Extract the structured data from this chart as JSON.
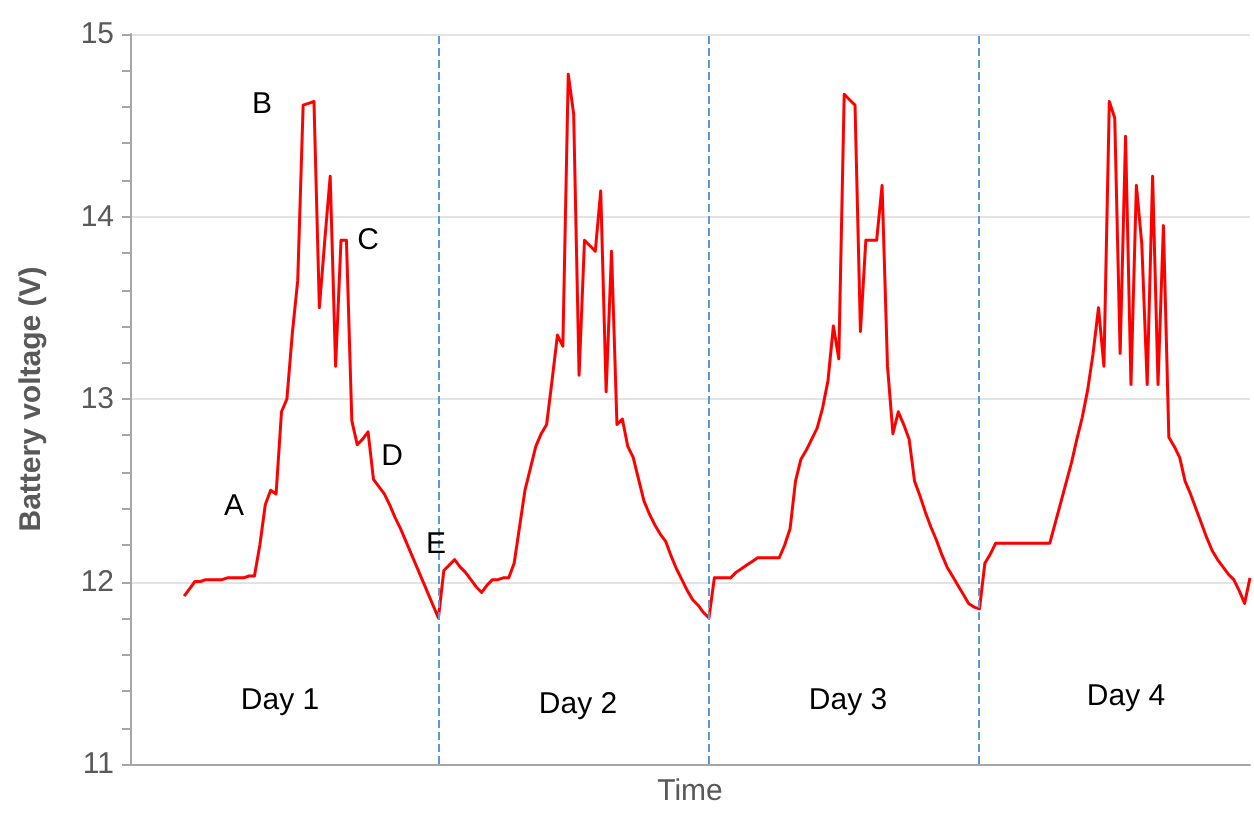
{
  "chart_data": {
    "type": "line",
    "xlabel": "Time",
    "ylabel": "Battery voltage (V)",
    "categories": [
      null,
      null,
      null,
      null,
      null,
      null,
      null,
      null,
      null,
      null,
      null,
      null,
      null,
      null,
      null,
      null,
      null,
      null,
      null,
      null,
      null,
      null,
      null,
      null,
      null,
      null,
      null,
      null,
      null,
      null,
      null,
      null,
      null,
      null,
      null,
      null,
      null,
      null,
      null,
      null,
      null,
      null,
      null,
      null,
      null,
      null,
      null,
      null,
      null,
      null,
      null,
      null,
      null,
      null,
      null,
      null,
      null,
      null,
      null,
      null,
      null,
      null,
      null,
      null,
      null,
      null,
      null,
      null,
      null,
      null,
      null,
      null,
      null,
      null,
      null,
      null,
      null,
      null,
      null,
      null,
      null,
      null,
      null,
      null,
      null,
      null,
      null,
      null,
      null,
      null,
      null,
      null,
      null,
      null,
      null,
      null,
      null,
      null,
      null,
      null,
      null,
      null,
      null,
      null,
      null,
      null,
      null,
      null,
      null,
      null,
      null,
      null,
      null,
      null,
      null,
      null,
      null,
      null,
      null,
      null,
      null,
      null,
      null,
      null,
      null,
      null,
      null,
      null,
      null,
      null,
      null,
      null,
      null,
      null,
      null,
      null,
      null,
      null,
      null,
      null,
      null,
      null,
      null,
      null,
      null,
      null,
      null,
      null,
      null,
      null,
      null,
      null,
      null,
      null,
      null,
      null,
      null,
      null,
      null,
      null,
      null,
      null,
      null,
      null,
      null,
      null,
      null,
      null,
      null,
      null,
      null,
      null,
      null,
      null,
      null,
      null,
      null,
      null,
      null,
      null,
      null,
      null,
      null,
      null,
      null,
      null,
      null,
      null,
      null,
      null,
      null,
      null,
      null,
      null,
      null,
      null,
      null,
      null,
      null,
      null,
      null,
      null,
      null,
      null,
      null,
      null,
      null,
      null
    ],
    "ylim": [
      11,
      15
    ],
    "yticks": [
      11,
      {
        "value": 11.2,
        "label": null
      },
      {
        "value": 11.4,
        "label": null
      },
      {
        "value": 11.6,
        "label": null
      },
      {
        "value": 11.8,
        "label": null
      },
      12,
      {
        "value": 12.2,
        "label": null
      },
      {
        "value": 12.4,
        "label": null
      },
      {
        "value": 12.6,
        "label": null
      },
      {
        "value": 12.8,
        "label": null
      },
      13,
      {
        "value": 13.2,
        "label": null
      },
      {
        "value": 13.4,
        "label": null
      },
      {
        "value": 13.6,
        "label": null
      },
      {
        "value": 13.8,
        "label": null
      },
      14,
      {
        "value": 14.2,
        "label": null
      },
      {
        "value": 14.4,
        "label": null
      },
      {
        "value": 14.6,
        "label": null
      },
      {
        "value": 14.8,
        "label": null
      },
      15
    ],
    "tick_labels": "y",
    "grid": "y",
    "line_style": "solid",
    "series": [
      {
        "color": "#ff0000",
        "values": [
          null,
          null,
          null,
          null,
          null,
          null,
          null,
          null,
          null,
          null,
          11.92,
          11.96,
          12.0,
          12.0,
          12.01,
          12.01,
          12.01,
          12.01,
          12.02,
          12.02,
          12.02,
          12.02,
          12.03,
          12.03,
          12.2,
          12.42,
          12.5,
          12.48,
          12.93,
          13.0,
          13.36,
          13.65,
          14.61,
          14.62,
          14.63,
          13.5,
          13.87,
          14.22,
          13.18,
          13.87,
          13.87,
          12.88,
          12.75,
          12.78,
          12.82,
          12.56,
          12.52,
          12.48,
          12.42,
          12.35,
          12.29,
          12.22,
          12.15,
          12.08,
          12.01,
          11.94,
          11.87,
          11.8,
          12.06,
          12.09,
          12.12,
          12.08,
          12.05,
          12.01,
          11.97,
          11.94,
          11.98,
          12.01,
          12.01,
          12.02,
          12.02,
          12.1,
          12.3,
          12.5,
          12.62,
          12.74,
          12.81,
          12.86,
          13.1,
          13.35,
          13.29,
          14.78,
          14.56,
          13.13,
          13.87,
          13.84,
          13.81,
          14.14,
          13.04,
          13.81,
          12.86,
          12.89,
          12.74,
          12.68,
          12.56,
          12.44,
          12.37,
          12.31,
          12.26,
          12.22,
          12.14,
          12.07,
          12.01,
          11.95,
          11.9,
          11.87,
          11.83,
          11.8,
          12.02,
          12.02,
          12.02,
          12.02,
          12.05,
          12.07,
          12.09,
          12.11,
          12.13,
          12.13,
          12.13,
          12.13,
          12.13,
          12.2,
          12.29,
          12.55,
          12.67,
          12.72,
          12.78,
          12.84,
          12.95,
          13.1,
          13.4,
          13.22,
          14.67,
          14.64,
          14.61,
          13.37,
          13.87,
          13.87,
          13.87,
          14.17,
          13.18,
          12.81,
          12.93,
          12.86,
          12.78,
          12.55,
          12.47,
          12.38,
          12.3,
          12.23,
          12.15,
          12.08,
          12.03,
          11.98,
          11.93,
          11.88,
          11.86,
          11.85,
          12.1,
          12.15,
          12.21,
          12.21,
          12.21,
          12.21,
          12.21,
          12.21,
          12.21,
          12.21,
          12.21,
          12.21,
          12.21,
          12.32,
          12.43,
          12.54,
          12.65,
          12.78,
          12.9,
          13.05,
          13.25,
          13.5,
          13.18,
          14.63,
          14.54,
          13.25,
          14.44,
          13.08,
          14.17,
          13.85,
          13.08,
          14.22,
          13.08,
          13.95,
          12.79,
          12.74,
          12.68,
          12.55,
          12.48,
          12.4,
          12.32,
          12.24,
          12.17,
          12.12,
          12.08,
          12.04,
          12.01,
          11.95,
          11.88,
          12.02
        ]
      }
    ],
    "annotations": [
      "A",
      "B",
      "C",
      "D",
      "E",
      "Day 1",
      "Day 2",
      "Day 3",
      "Day 4"
    ]
  }
}
